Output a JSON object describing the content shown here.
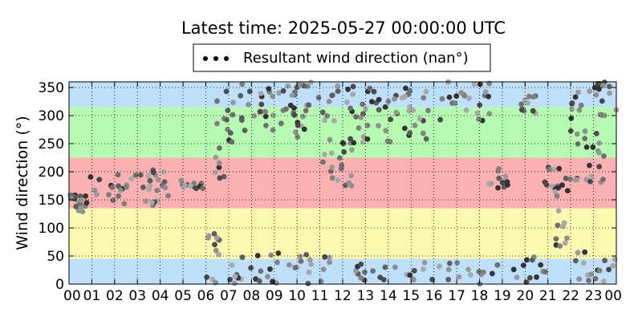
{
  "chart_data": {
    "type": "scatter",
    "title": "Latest time: 2025-05-27 00:00:00 UTC",
    "xlabel": "",
    "ylabel": "Wind direction (°)",
    "xlim": [
      0,
      24
    ],
    "ylim": [
      0,
      360
    ],
    "xticks": [
      "00",
      "01",
      "02",
      "03",
      "04",
      "05",
      "06",
      "07",
      "08",
      "09",
      "10",
      "11",
      "12",
      "13",
      "14",
      "15",
      "16",
      "17",
      "18",
      "19",
      "20",
      "21",
      "22",
      "23",
      "00"
    ],
    "yticks": [
      0,
      50,
      100,
      150,
      200,
      250,
      300,
      350
    ],
    "grid": true,
    "legend": {
      "position": "top-center",
      "entries": [
        "Resultant wind direction (nan°)"
      ]
    },
    "bands": [
      {
        "from": 0,
        "to": 45,
        "color": "#bfe0fb"
      },
      {
        "from": 45,
        "to": 135,
        "color": "#fcfab0"
      },
      {
        "from": 135,
        "to": 225,
        "color": "#fbb1b1"
      },
      {
        "from": 225,
        "to": 315,
        "color": "#b7fbb3"
      },
      {
        "from": 315,
        "to": 360,
        "color": "#bfe0fb"
      }
    ],
    "series": [
      {
        "name": "Resultant wind direction (nan°)",
        "clusters": [
          {
            "t": [
              0.0,
              0.3
            ],
            "dir": [
              150,
              160
            ]
          },
          {
            "t": [
              0.3,
              0.8
            ],
            "dir": [
              125,
              170
            ]
          },
          {
            "t": [
              0.8,
              2.5
            ],
            "dir": [
              130,
              195
            ]
          },
          {
            "t": [
              2.5,
              4.5
            ],
            "dir": [
              160,
              210
            ]
          },
          {
            "t": [
              3.2,
              4.6
            ],
            "dir": [
              140,
              200
            ]
          },
          {
            "t": [
              4.5,
              5.9
            ],
            "dir": [
              170,
              185
            ]
          },
          {
            "t": [
              5.9,
              6.6
            ],
            "dir": [
              0,
              100
            ]
          },
          {
            "t": [
              6.4,
              7.2
            ],
            "dir": [
              180,
              360
            ]
          },
          {
            "t": [
              7.0,
              11.5
            ],
            "dir": [
              0,
              60
            ]
          },
          {
            "t": [
              7.5,
              10.5
            ],
            "dir": [
              260,
              360
            ]
          },
          {
            "t": [
              9.5,
              11.8
            ],
            "dir": [
              290,
              360
            ]
          },
          {
            "t": [
              11.0,
              12.5
            ],
            "dir": [
              170,
              260
            ]
          },
          {
            "t": [
              12.0,
              16.0
            ],
            "dir": [
              250,
              360
            ]
          },
          {
            "t": [
              12.5,
              16.5
            ],
            "dir": [
              0,
              40
            ]
          },
          {
            "t": [
              16.0,
              18.5
            ],
            "dir": [
              290,
              360
            ]
          },
          {
            "t": [
              16.5,
              19.0
            ],
            "dir": [
              0,
              40
            ]
          },
          {
            "t": [
              18.3,
              19.3
            ],
            "dir": [
              160,
              210
            ]
          },
          {
            "t": [
              19.5,
              21.0
            ],
            "dir": [
              0,
              50
            ]
          },
          {
            "t": [
              19.8,
              20.5
            ],
            "dir": [
              290,
              340
            ]
          },
          {
            "t": [
              20.8,
              21.6
            ],
            "dir": [
              150,
              210
            ]
          },
          {
            "t": [
              21.3,
              22.0
            ],
            "dir": [
              60,
              230
            ]
          },
          {
            "t": [
              22.0,
              23.5
            ],
            "dir": [
              180,
              360
            ]
          },
          {
            "t": [
              22.0,
              24.0
            ],
            "dir": [
              0,
              60
            ]
          },
          {
            "t": [
              23.0,
              24.0
            ],
            "dir": [
              300,
              360
            ]
          }
        ]
      }
    ]
  }
}
